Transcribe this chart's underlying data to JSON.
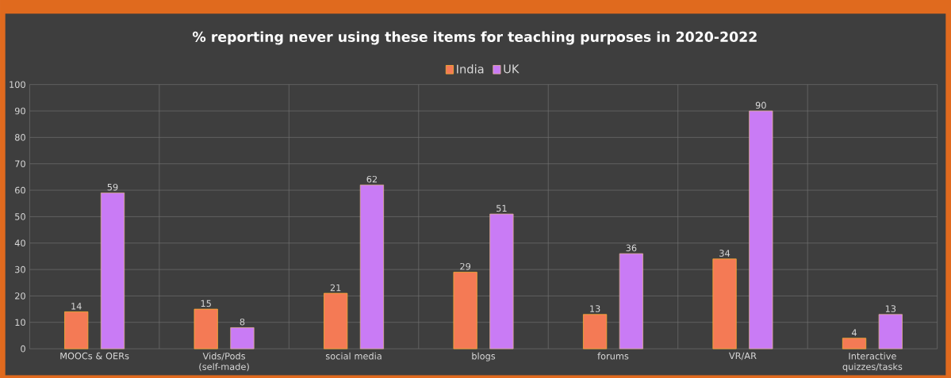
{
  "chart_data": {
    "type": "bar",
    "title": "% reporting never using these items for teaching purposes in 2020-2022",
    "categories": [
      "MOOCs & OERs",
      "Vids/Pods (self-made)",
      "social media",
      "blogs",
      "forums",
      "VR/AR",
      "Interactive quizzes/tasks"
    ],
    "series": [
      {
        "name": "India",
        "color": "#f47a55",
        "values": [
          14,
          15,
          21,
          29,
          13,
          34,
          4
        ]
      },
      {
        "name": "UK",
        "color": "#c97bf5",
        "values": [
          59,
          8,
          62,
          51,
          36,
          90,
          13
        ]
      }
    ],
    "ylim": [
      0,
      100
    ],
    "yticks": [
      0,
      10,
      20,
      30,
      40,
      50,
      60,
      70,
      80,
      90,
      100
    ],
    "grid": true,
    "legend": "top",
    "data_labels": true
  }
}
